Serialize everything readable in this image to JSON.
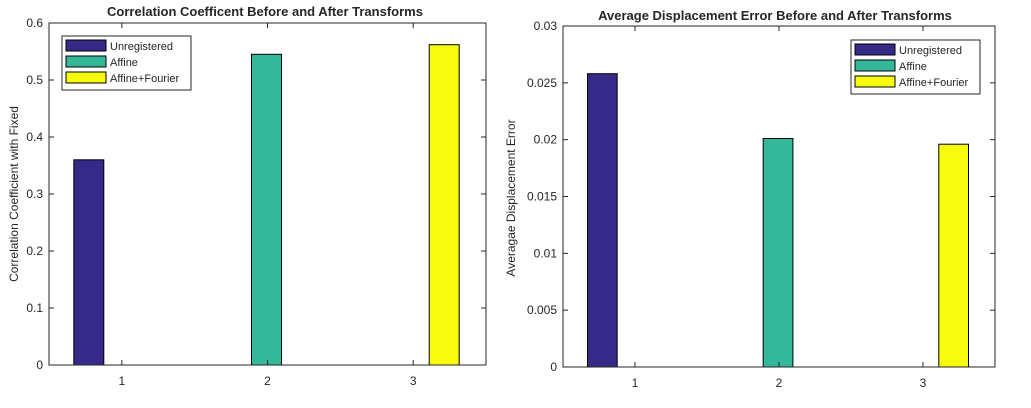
{
  "chart_data": [
    {
      "type": "bar",
      "title": "Correlation Coefficent Before and After Transforms",
      "xlabel": "",
      "ylabel": "Correlation Coefficient with Fixed",
      "categories": [
        "1",
        "2",
        "3"
      ],
      "ylim": [
        0,
        0.6
      ],
      "yticks": [
        "0",
        "0.1",
        "0.2",
        "0.3",
        "0.4",
        "0.5",
        "0.6"
      ],
      "legend_position": "top-left",
      "grid": false,
      "series": [
        {
          "name": "Unregistered",
          "color": "#352a87",
          "values": [
            0.36,
            0,
            0
          ]
        },
        {
          "name": "Affine",
          "color": "#35b79a",
          "values": [
            0,
            0.545,
            0
          ]
        },
        {
          "name": "Affine+Fourier",
          "color": "#f9fb0e",
          "values": [
            0,
            0,
            0.562
          ]
        }
      ]
    },
    {
      "type": "bar",
      "title": "Average Displacement Error Before and After Transforms",
      "xlabel": "",
      "ylabel": "Averagae Displacement Error",
      "categories": [
        "1",
        "2",
        "3"
      ],
      "ylim": [
        0,
        0.03
      ],
      "yticks": [
        "0",
        "0.005",
        "0.01",
        "0.015",
        "0.02",
        "0.025",
        "0.03"
      ],
      "legend_position": "top-right",
      "grid": false,
      "series": [
        {
          "name": "Unregistered",
          "color": "#352a87",
          "values": [
            0.0258,
            0,
            0
          ]
        },
        {
          "name": "Affine",
          "color": "#35b79a",
          "values": [
            0,
            0.0201,
            0
          ]
        },
        {
          "name": "Affine+Fourier",
          "color": "#f9fb0e",
          "values": [
            0,
            0,
            0.0196
          ]
        }
      ]
    }
  ]
}
